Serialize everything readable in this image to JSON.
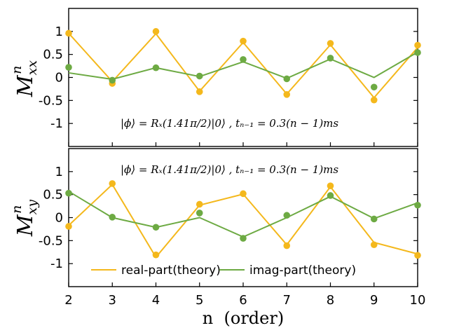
{
  "chart_data": [
    {
      "type": "line",
      "id": "Mxx",
      "ylabel": "M",
      "ylabel_sub": "xx",
      "ylabel_sup": "n",
      "xlabel": "",
      "x": [
        2,
        3,
        4,
        5,
        6,
        7,
        8,
        9,
        10
      ],
      "xlim": [
        2,
        10
      ],
      "ylim": [
        -1.5,
        1.5
      ],
      "yticks": [
        1,
        0.5,
        0,
        -0.5,
        -1
      ],
      "ytick_labels": [
        "1",
        "0.5",
        "0",
        "-0.5",
        "-1"
      ],
      "annotation": "|ϕ⟩ = Rₓ(1.41π/2)|0⟩ ,  tₙ₋₁ = 0.3(n − 1)ms",
      "series": [
        {
          "role": "theory",
          "color": "#F4B81C",
          "line": [
            0.96,
            -0.09,
            0.95,
            -0.3,
            0.76,
            -0.36,
            0.71,
            -0.44,
            0.65
          ]
        },
        {
          "role": "experiment",
          "color": "#F4B81C",
          "points": [
            0.96,
            -0.13,
            1.0,
            -0.31,
            0.79,
            -0.37,
            0.74,
            -0.49,
            0.7
          ]
        },
        {
          "role": "theory",
          "color": "#6DAA43",
          "line": [
            0.1,
            -0.04,
            0.21,
            0.02,
            0.34,
            -0.02,
            0.4,
            0.0,
            0.55
          ]
        },
        {
          "role": "experiment",
          "color": "#6DAA43",
          "points": [
            0.22,
            -0.06,
            0.21,
            0.03,
            0.39,
            -0.03,
            0.42,
            -0.21,
            0.54
          ]
        }
      ]
    },
    {
      "type": "line",
      "id": "Mxy",
      "ylabel": "M",
      "ylabel_sub": "xy",
      "ylabel_sup": "n",
      "xlabel": "n  (order)",
      "x": [
        2,
        3,
        4,
        5,
        6,
        7,
        8,
        9,
        10
      ],
      "xlim": [
        2,
        10
      ],
      "ylim": [
        -1.5,
        1.5
      ],
      "yticks": [
        1,
        0.5,
        0,
        -0.5,
        -1
      ],
      "ytick_labels": [
        "1",
        "0.5",
        "0",
        "-0.5",
        "-1"
      ],
      "xticks": [
        2,
        3,
        4,
        5,
        6,
        7,
        8,
        9,
        10
      ],
      "xtick_labels": [
        "2",
        "3",
        "4",
        "5",
        "6",
        "7",
        "8",
        "9",
        "10"
      ],
      "annotation": "|ϕ⟩ = Rₓ(1.41π/2)|0⟩ ,  tₙ₋₁ = 0.3(n − 1)ms",
      "legend": {
        "placement": "bottom",
        "entries": [
          {
            "label": "real-part(theory)",
            "color": "#F4B81C"
          },
          {
            "label": "imag-part(theory)",
            "color": "#6DAA43"
          }
        ]
      },
      "series": [
        {
          "role": "theory",
          "color": "#F4B81C",
          "line": [
            -0.17,
            0.72,
            -0.86,
            0.27,
            0.51,
            -0.59,
            0.67,
            -0.54,
            -0.79
          ]
        },
        {
          "role": "experiment",
          "color": "#F4B81C",
          "points": [
            -0.19,
            0.74,
            -0.81,
            0.29,
            0.52,
            -0.61,
            0.69,
            -0.59,
            -0.82
          ]
        },
        {
          "role": "theory",
          "color": "#6DAA43",
          "line": [
            0.57,
            0.0,
            -0.21,
            0.0,
            -0.42,
            0.0,
            0.46,
            -0.02,
            0.32
          ]
        },
        {
          "role": "experiment",
          "color": "#6DAA43",
          "points": [
            0.53,
            0.01,
            -0.21,
            0.1,
            -0.45,
            0.05,
            0.48,
            -0.03,
            0.27
          ]
        }
      ]
    }
  ]
}
